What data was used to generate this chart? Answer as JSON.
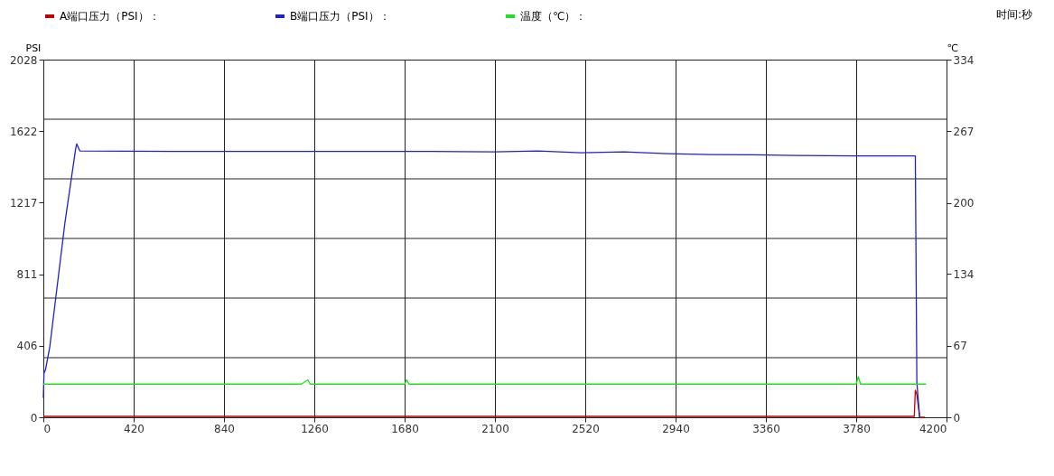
{
  "chart_data": {
    "type": "line",
    "xlabel": "时间:秒",
    "ylabel": "PSI",
    "y2label": "℃",
    "xlim": [
      0,
      4200
    ],
    "xticks": [
      0,
      420,
      840,
      1260,
      1680,
      2100,
      2520,
      2940,
      3360,
      3780,
      4200
    ],
    "ylim": [
      0,
      2028
    ],
    "yticks": [
      0,
      {
        "value": 338,
        "label": null
      },
      406,
      {
        "value": 676,
        "label": null
      },
      811,
      {
        "value": 1014,
        "label": null
      },
      1217,
      {
        "value": 1352,
        "label": null
      },
      1622,
      {
        "value": 1690,
        "label": null
      },
      2028
    ],
    "y2lim": [
      0,
      334
    ],
    "y2ticks": [
      0,
      67,
      134,
      200,
      267,
      334
    ],
    "grid": true,
    "legend": "top",
    "series": [
      {
        "name": "A端口压力（PSI）：",
        "color": "#c00000",
        "x": [
          0,
          500,
          1000,
          1500,
          2000,
          2500,
          3000,
          3500,
          4000,
          4050,
          4055,
          4062,
          4075,
          4100
        ],
        "values": [
          5,
          5,
          5,
          5,
          5,
          5,
          5,
          5,
          5,
          5,
          154,
          130,
          0,
          0
        ]
      },
      {
        "name": "B端口压力（PSI）：",
        "color": "#2020d0",
        "x": [
          0,
          3,
          10,
          30,
          100,
          150,
          155,
          170,
          600,
          1200,
          1800,
          2100,
          2300,
          2500,
          2700,
          2900,
          3100,
          3300,
          3500,
          3800,
          4055,
          4062,
          4075
        ],
        "values": [
          110,
          250,
          270,
          400,
          1100,
          1520,
          1550,
          1510,
          1508,
          1508,
          1508,
          1505,
          1510,
          1500,
          1505,
          1495,
          1490,
          1488,
          1485,
          1482,
          1482,
          200,
          0
        ]
      },
      {
        "name": "温度（℃）：",
        "color": "#20e020",
        "axis": "y2",
        "x": [
          0,
          1200,
          1230,
          1240,
          1680,
          1690,
          1700,
          3780,
          3790,
          3800,
          4105
        ],
        "values": [
          31,
          31,
          35,
          31,
          31,
          35,
          31,
          31,
          38,
          31,
          31
        ]
      }
    ]
  }
}
